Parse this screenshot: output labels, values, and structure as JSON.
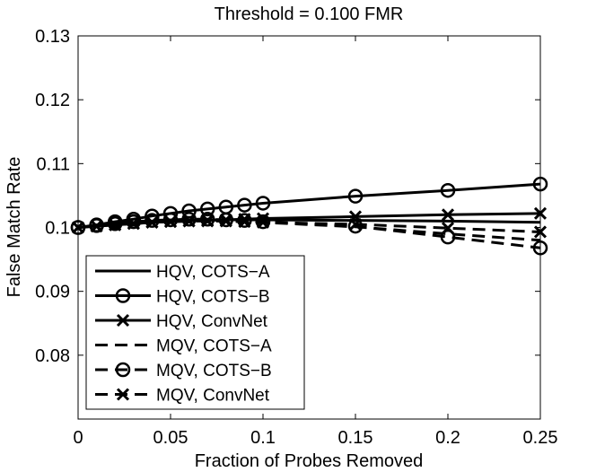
{
  "chart_data": {
    "type": "line",
    "title": "Threshold = 0.100 FMR",
    "xlabel": "Fraction of Probes Removed",
    "ylabel": "False Match Rate",
    "xlim": [
      0,
      0.25
    ],
    "ylim": [
      0.07,
      0.13
    ],
    "xticks": [
      0,
      0.05,
      0.1,
      0.15,
      0.2,
      0.25
    ],
    "xtick_labels": [
      "0",
      "0.05",
      "0.1",
      "0.15",
      "0.2",
      "0.25"
    ],
    "yticks": [
      0.08,
      0.09,
      0.1,
      0.11,
      0.12,
      0.13
    ],
    "ytick_labels": [
      "0.08",
      "0.09",
      "0.1",
      "0.11",
      "0.12",
      "0.13"
    ],
    "legend_position": "bottom-left",
    "x": [
      0,
      0.01,
      0.02,
      0.03,
      0.04,
      0.05,
      0.06,
      0.07,
      0.08,
      0.09,
      0.1,
      0.15,
      0.2,
      0.25
    ],
    "series": [
      {
        "name": "HQV, COTS−A",
        "style": "solid",
        "marker": "none",
        "values": [
          0.1,
          0.1003,
          0.1006,
          0.1008,
          0.101,
          0.1011,
          0.1012,
          0.1012,
          0.1012,
          0.1012,
          0.1012,
          0.1011,
          0.101,
          0.1008
        ]
      },
      {
        "name": "HQV, COTS−B",
        "style": "solid",
        "marker": "circle",
        "values": [
          0.1,
          0.1004,
          0.1009,
          0.1013,
          0.1018,
          0.1022,
          0.1026,
          0.1029,
          0.1032,
          0.1035,
          0.1038,
          0.1049,
          0.1058,
          0.1068
        ]
      },
      {
        "name": "HQV, ConvNet",
        "style": "solid",
        "marker": "x",
        "values": [
          0.1,
          0.1002,
          0.1004,
          0.1006,
          0.1008,
          0.1009,
          0.101,
          0.1011,
          0.1012,
          0.1013,
          0.1014,
          0.1017,
          0.102,
          0.1022
        ]
      },
      {
        "name": "MQV, COTS−A",
        "style": "dashed",
        "marker": "none",
        "values": [
          0.1,
          0.1003,
          0.1005,
          0.1007,
          0.1009,
          0.101,
          0.1011,
          0.1011,
          0.101,
          0.1009,
          0.1008,
          0.1001,
          0.099,
          0.098
        ]
      },
      {
        "name": "MQV, COTS−B",
        "style": "dashed",
        "marker": "circle",
        "values": [
          0.1,
          0.1003,
          0.1006,
          0.1009,
          0.1011,
          0.1012,
          0.1013,
          0.1013,
          0.1012,
          0.1011,
          0.1009,
          0.1002,
          0.0985,
          0.0968
        ]
      },
      {
        "name": "MQV, ConvNet",
        "style": "dashed",
        "marker": "x",
        "values": [
          0.1,
          0.1002,
          0.1004,
          0.1006,
          0.1008,
          0.1009,
          0.101,
          0.101,
          0.101,
          0.1009,
          0.1008,
          0.1005,
          0.0999,
          0.0993
        ]
      }
    ]
  }
}
